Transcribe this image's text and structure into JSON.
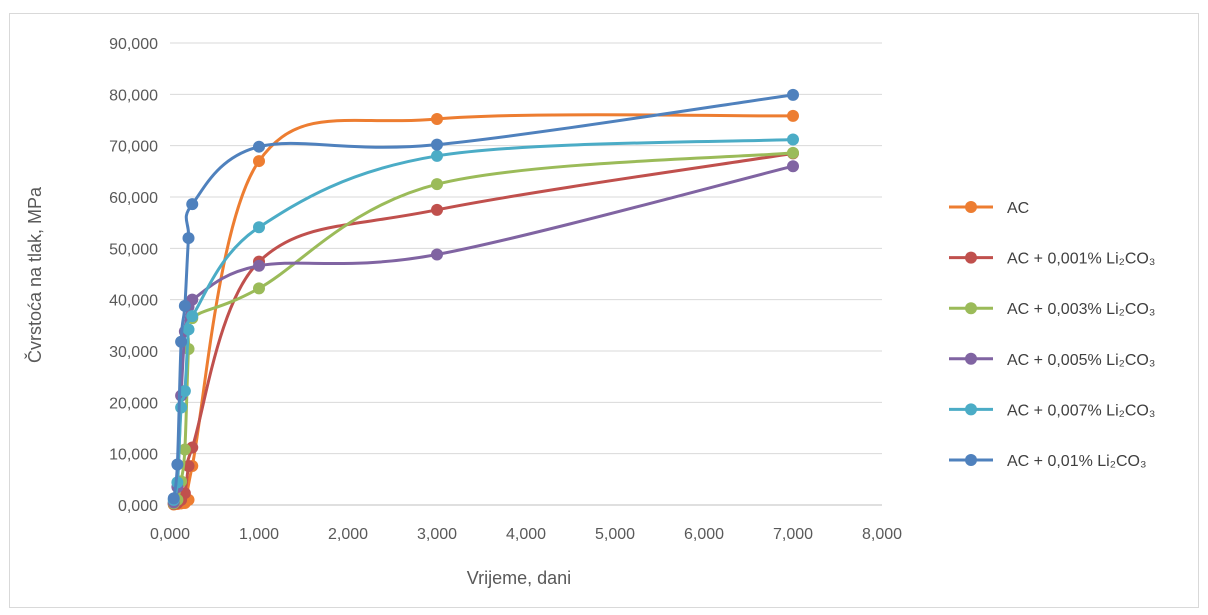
{
  "chart_data": {
    "type": "line",
    "title": "",
    "xlabel": "Vrijeme, dani",
    "ylabel": "Čvrstoća na tlak, MPa",
    "xlim": [
      0,
      8
    ],
    "ylim": [
      0,
      90
    ],
    "x_ticks": [
      "0,000",
      "1,000",
      "2,000",
      "3,000",
      "4,000",
      "5,000",
      "6,000",
      "7,000",
      "8,000"
    ],
    "y_ticks": [
      "0,000",
      "10,000",
      "20,000",
      "30,000",
      "40,000",
      "50,000",
      "60,000",
      "70,000",
      "80,000",
      "90,000"
    ],
    "grid": "horizontal",
    "legend_position": "right",
    "series": [
      {
        "name": "AC",
        "color": "#ED7D31",
        "points": [
          [
            0.042,
            0.1
          ],
          [
            0.083,
            0.2
          ],
          [
            0.125,
            0.3
          ],
          [
            0.167,
            0.4
          ],
          [
            0.208,
            1.0
          ],
          [
            0.25,
            7.6
          ],
          [
            1,
            67.0
          ],
          [
            3,
            75.2
          ],
          [
            7,
            75.8
          ]
        ]
      },
      {
        "name": "AC + 0,001% Li₂CO₃",
        "color": "#C0504D",
        "points": [
          [
            0.042,
            0.2
          ],
          [
            0.083,
            0.4
          ],
          [
            0.125,
            1.0
          ],
          [
            0.167,
            2.3
          ],
          [
            0.208,
            7.6
          ],
          [
            0.25,
            11.2
          ],
          [
            1,
            47.4
          ],
          [
            3,
            57.5
          ],
          [
            7,
            68.5
          ]
        ]
      },
      {
        "name": "AC + 0,003% Li₂CO₃",
        "color": "#9BBB59",
        "points": [
          [
            0.042,
            0.3
          ],
          [
            0.083,
            1.0
          ],
          [
            0.125,
            4.6
          ],
          [
            0.167,
            10.8
          ],
          [
            0.208,
            30.4
          ],
          [
            0.25,
            36.4
          ],
          [
            1,
            42.2
          ],
          [
            3,
            62.5
          ],
          [
            7,
            68.6
          ]
        ]
      },
      {
        "name": "AC + 0,005% Li₂CO₃",
        "color": "#8064A2",
        "points": [
          [
            0.042,
            0.5
          ],
          [
            0.083,
            3.5
          ],
          [
            0.125,
            21.3
          ],
          [
            0.167,
            33.8
          ],
          [
            0.208,
            38.6
          ],
          [
            0.25,
            40.0
          ],
          [
            1,
            46.6
          ],
          [
            3,
            48.8
          ],
          [
            7,
            66.0
          ]
        ]
      },
      {
        "name": "AC + 0,007% Li₂CO₃",
        "color": "#4BACC6",
        "points": [
          [
            0.042,
            1.0
          ],
          [
            0.083,
            4.4
          ],
          [
            0.125,
            19.0
          ],
          [
            0.167,
            22.2
          ],
          [
            0.208,
            34.2
          ],
          [
            0.25,
            36.8
          ],
          [
            1,
            54.1
          ],
          [
            3,
            68.0
          ],
          [
            7,
            71.2
          ]
        ]
      },
      {
        "name": "AC + 0,01% Li₂CO₃",
        "color": "#4F81BD",
        "points": [
          [
            0.042,
            1.3
          ],
          [
            0.083,
            7.9
          ],
          [
            0.125,
            31.8
          ],
          [
            0.167,
            38.8
          ],
          [
            0.208,
            52.0
          ],
          [
            0.25,
            58.6
          ],
          [
            1,
            69.8
          ],
          [
            3,
            70.2
          ],
          [
            7,
            79.9
          ]
        ]
      }
    ]
  }
}
